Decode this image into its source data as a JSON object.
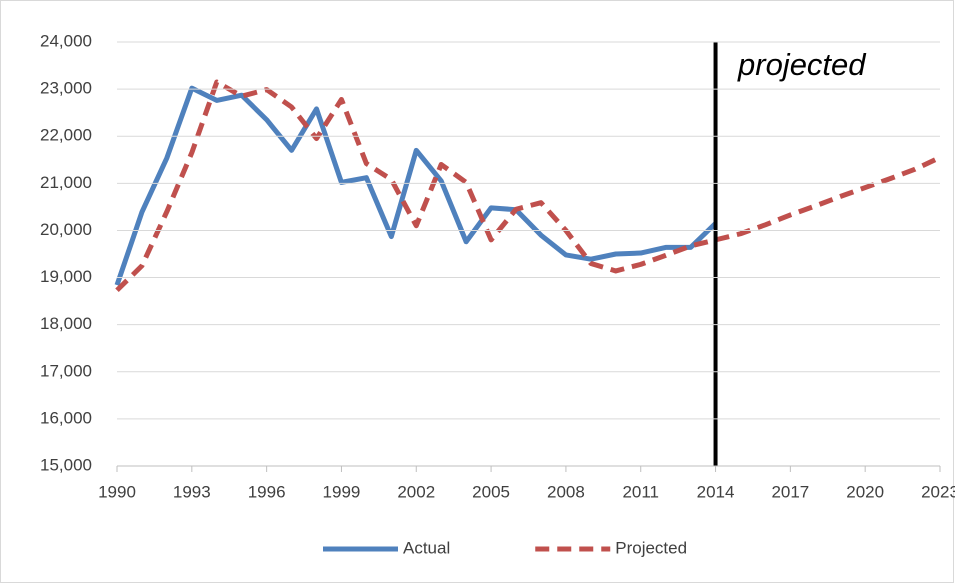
{
  "chart_data": {
    "type": "line",
    "x": [
      1990,
      1991,
      1992,
      1993,
      1994,
      1995,
      1996,
      1997,
      1998,
      1999,
      2000,
      2001,
      2002,
      2003,
      2004,
      2005,
      2006,
      2007,
      2008,
      2009,
      2010,
      2011,
      2012,
      2013,
      2014,
      2015,
      2016,
      2017,
      2018,
      2019,
      2020,
      2021,
      2022,
      2023
    ],
    "series": [
      {
        "name": "Actual",
        "color": "#4f81bd",
        "dash": false,
        "values": [
          18840,
          20390,
          21540,
          23020,
          22760,
          22870,
          22350,
          21700,
          22580,
          21020,
          21120,
          19870,
          21700,
          21050,
          19760,
          20480,
          20440,
          19900,
          19480,
          19390,
          19500,
          19520,
          19640,
          19640,
          20150,
          null,
          null,
          null,
          null,
          null,
          null,
          null,
          null,
          null
        ]
      },
      {
        "name": "Projected",
        "color": "#c0504d",
        "dash": true,
        "values": [
          18730,
          19250,
          20400,
          21650,
          23150,
          22850,
          22990,
          22620,
          21950,
          22780,
          21420,
          21080,
          20100,
          21400,
          21020,
          19800,
          20450,
          20590,
          20000,
          19300,
          19140,
          19280,
          19470,
          19670,
          19800,
          19930,
          20120,
          20330,
          20520,
          20720,
          20910,
          21100,
          21300,
          21550
        ]
      }
    ],
    "xlim": [
      1990,
      2023
    ],
    "xticks": [
      1990,
      1993,
      1996,
      1999,
      2002,
      2005,
      2008,
      2011,
      2014,
      2017,
      2020,
      2023
    ],
    "ylim": [
      15000,
      24000
    ],
    "yticks": [
      {
        "value": 15000,
        "label": "15,000"
      },
      {
        "value": 16000,
        "label": "16,000"
      },
      {
        "value": 17000,
        "label": "17,000"
      },
      {
        "value": 18000,
        "label": "18,000"
      },
      {
        "value": 19000,
        "label": "19,000"
      },
      {
        "value": 20000,
        "label": "20,000"
      },
      {
        "value": 21000,
        "label": "21,000"
      },
      {
        "value": 22000,
        "label": "22,000"
      },
      {
        "value": 23000,
        "label": "23,000"
      },
      {
        "value": 24000,
        "label": "24,000"
      }
    ],
    "grid": true,
    "vline": 2014,
    "annotation": "projected",
    "legend": "bottom"
  }
}
